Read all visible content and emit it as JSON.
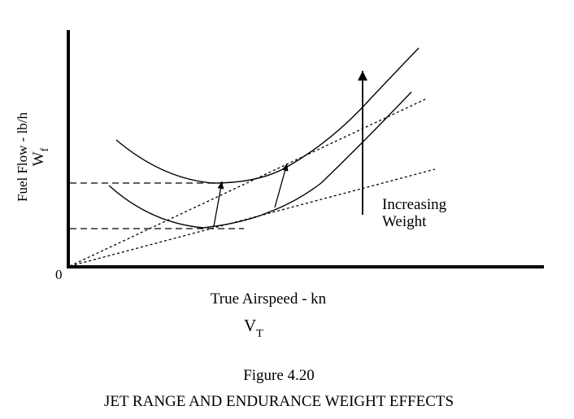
{
  "diagram": {
    "y_axis_label": "Fuel Flow - lb/h",
    "y_symbol": "W",
    "y_symbol_sub": "f",
    "origin_label": "0",
    "x_axis_label": "True Airspeed - kn",
    "x_symbol": "V",
    "x_symbol_sub": "T",
    "annotation_line1": "Increasing",
    "annotation_line2": "Weight",
    "figure_number": "Figure 4.20",
    "figure_title": "JET RANGE AND ENDURANCE WEIGHT EFFECTS",
    "curves": [
      {
        "name": "heavy-weight-curve"
      },
      {
        "name": "light-weight-curve"
      }
    ]
  }
}
